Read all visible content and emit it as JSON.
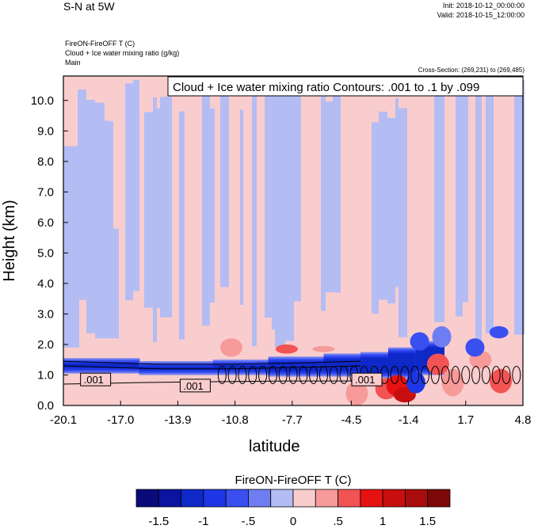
{
  "header": {
    "title": "S-N at 5W",
    "init": "Init: 2018-10-12_00:00:00",
    "valid": "Valid: 2018-10-15_12:00:00",
    "var1": "FireON-FireOFF T   (C)",
    "var2": "Cloud + Ice water mixing ratio   (g/kg)",
    "var3": "Main",
    "cross_section": "Cross-Section: (269,231) to (269,485)"
  },
  "chart_data": {
    "type": "heatmap",
    "title": "S-N at 5W",
    "xlabel": "latitude",
    "ylabel": "Height (km)",
    "x_ticks": [
      "-20.1",
      "-17.0",
      "-13.9",
      "-10.8",
      "-7.7",
      "-4.5",
      "-1.4",
      "1.7",
      "4.8"
    ],
    "x_range": [
      -20.1,
      4.8
    ],
    "y_ticks": [
      "0.0",
      "1.0",
      "2.0",
      "3.0",
      "4.0",
      "5.0",
      "6.0",
      "7.0",
      "8.0",
      "9.0",
      "10.0"
    ],
    "y_range": [
      0,
      10.8
    ],
    "contour_annotation": "Cloud + Ice water mixing ratio Contours: .001 to .1 by .099",
    "contour_labels": [
      ".001",
      ".001",
      ".001"
    ],
    "colorbar": {
      "title": "FireON-FireOFF T  (C)",
      "tick_labels": [
        "-1.5",
        "-1",
        "-.5",
        "0",
        ".5",
        "1",
        "1.5"
      ],
      "colors": [
        "#0a0a7a",
        "#0a14a0",
        "#0f28c8",
        "#1e37e6",
        "#3a4ff0",
        "#6e7ef2",
        "#b4bcf4",
        "#f9cdcd",
        "#f79a9a",
        "#f25353",
        "#e61212",
        "#c80e0e",
        "#a80c0c",
        "#7d0808"
      ]
    },
    "background": {
      "positive_color": "#f9cdcd",
      "negative_color": "#b4bcf4"
    }
  }
}
